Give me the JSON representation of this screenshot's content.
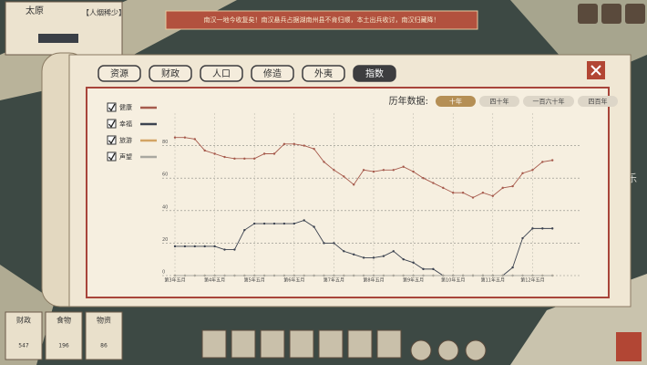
{
  "city": {
    "name": "太原",
    "status": "【人烟稀少】"
  },
  "banner": "南汉一地今收复矣！南汉悬兵占据湖南州县不肯归顺，本土出兵收讨，南汉归藏降！",
  "tabs": [
    "资源",
    "财政",
    "人口",
    "修造",
    "外夷",
    "指数"
  ],
  "active_tab": 5,
  "range_label": "历年数据:",
  "range_options": [
    "十年",
    "四十年",
    "一百六十年",
    "四百年"
  ],
  "active_range": 0,
  "resources": [
    {
      "name": "财政",
      "value": "547"
    },
    {
      "name": "食物",
      "value": "196"
    },
    {
      "name": "物资",
      "value": "86"
    }
  ],
  "watermark": "融乐",
  "chart_data": {
    "type": "line",
    "categories": [
      "第3年五月",
      null,
      null,
      null,
      "第4年五月",
      null,
      null,
      null,
      "第5年五月",
      null,
      null,
      null,
      "第6年五月",
      null,
      null,
      null,
      "第7年五月",
      null,
      null,
      null,
      "第8年五月",
      null,
      null,
      null,
      "第9年五月",
      null,
      null,
      null,
      "第10年五月",
      null,
      null,
      null,
      "第11年五月",
      null,
      null,
      null,
      "第12年五月",
      null,
      null
    ],
    "series": [
      {
        "name": "健康",
        "color": "#a65a4c",
        "values": [
          85,
          85,
          84,
          77,
          75,
          73,
          72,
          72,
          72,
          75,
          75,
          81,
          81,
          80,
          78,
          70,
          65,
          61,
          56,
          65,
          64,
          65,
          65,
          67,
          64,
          60,
          57,
          54,
          51,
          51,
          48,
          51,
          49,
          54,
          55,
          63,
          65,
          70,
          71
        ]
      },
      {
        "name": "幸福",
        "color": "#3c4350",
        "values": [
          18,
          18,
          18,
          18,
          18,
          16,
          16,
          28,
          32,
          32,
          32,
          32,
          32,
          34,
          30,
          20,
          20,
          15,
          13,
          11,
          11,
          12,
          15,
          10,
          8,
          4,
          4,
          0,
          0,
          0,
          0,
          0,
          0,
          0,
          5,
          23,
          29,
          29,
          29
        ]
      },
      {
        "name": "旅游",
        "color": "#d3a464",
        "values": [
          0,
          0,
          0,
          0,
          0,
          0,
          0,
          0,
          0,
          0,
          0,
          0,
          0,
          0,
          0,
          0,
          0,
          0,
          0,
          0,
          0,
          0,
          0,
          0,
          0,
          0,
          0,
          0,
          0,
          0,
          0,
          0,
          0,
          0,
          0,
          0,
          0,
          0,
          0
        ]
      },
      {
        "name": "声望",
        "color": "#a9a8a0",
        "values": [
          0,
          0,
          0,
          0,
          0,
          0,
          0,
          0,
          0,
          0,
          0,
          0,
          0,
          0,
          0,
          0,
          0,
          0,
          0,
          0,
          0,
          0,
          0,
          0,
          0,
          0,
          0,
          0,
          0,
          0,
          0,
          0,
          0,
          0,
          0,
          0,
          0,
          0,
          0
        ]
      }
    ],
    "ylim": [
      0,
      100
    ],
    "yticks": [
      0,
      20,
      40,
      60,
      80
    ],
    "grid": true
  }
}
